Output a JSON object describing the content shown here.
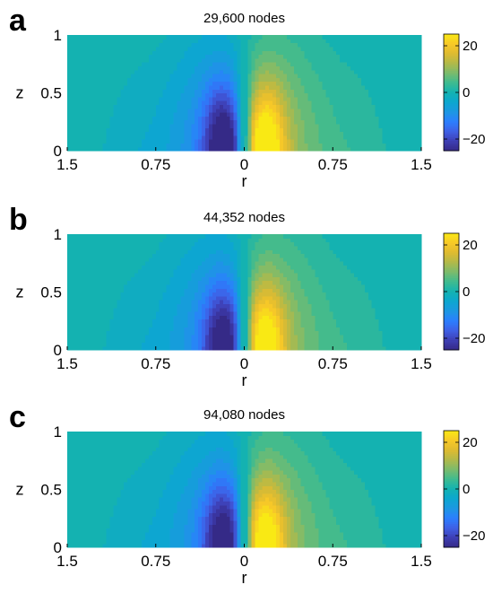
{
  "colormap": [
    "#352a87",
    "#3e3fb5",
    "#3f60e6",
    "#2b7ffe",
    "#1c97e2",
    "#0ca7cf",
    "#14b2b1",
    "#3fbb8f",
    "#7bbb6c",
    "#b2b949",
    "#dfbb30",
    "#f8c927",
    "#f9e914"
  ],
  "chart_data": [
    {
      "type": "heatmap",
      "panel_label": "a",
      "title": "29,600 nodes",
      "xlabel": "r",
      "ylabel": "z",
      "x_ticks": [
        "1.5",
        "0.75",
        "0",
        "0.75",
        "1.5"
      ],
      "y_ticks": [
        "0",
        "0.5",
        "1"
      ],
      "xlim": [
        -1.5,
        1.5
      ],
      "ylim": [
        0,
        1
      ],
      "colorbar": {
        "ticks": [
          "20",
          "0",
          "−20"
        ],
        "range": [
          -25,
          25
        ]
      },
      "peak_value": 25,
      "description_fields": {
        "field": "antisymmetric about r = 0: negative lobe for r < 0, positive lobe for r > 0, extreme near z = 0, r = ±0.15"
      }
    },
    {
      "type": "heatmap",
      "panel_label": "b",
      "title": "44,352 nodes",
      "xlabel": "r",
      "ylabel": "z",
      "x_ticks": [
        "1.5",
        "0.75",
        "0",
        "0.75",
        "1.5"
      ],
      "y_ticks": [
        "0",
        "0.5",
        "1"
      ],
      "xlim": [
        -1.5,
        1.5
      ],
      "ylim": [
        0,
        1
      ],
      "colorbar": {
        "ticks": [
          "20",
          "0",
          "−20"
        ],
        "range": [
          -25,
          25
        ]
      },
      "peak_value": 24
    },
    {
      "type": "heatmap",
      "panel_label": "c",
      "title": "94,080 nodes",
      "xlabel": "r",
      "ylabel": "z",
      "x_ticks": [
        "1.5",
        "0.75",
        "0",
        "0.75",
        "1.5"
      ],
      "y_ticks": [
        "0",
        "0.5",
        "1"
      ],
      "xlim": [
        -1.5,
        1.5
      ],
      "ylim": [
        0,
        1
      ],
      "colorbar": {
        "ticks": [
          "20",
          "0",
          "−20"
        ],
        "range": [
          -25,
          25
        ]
      },
      "peak_value": 24
    }
  ]
}
